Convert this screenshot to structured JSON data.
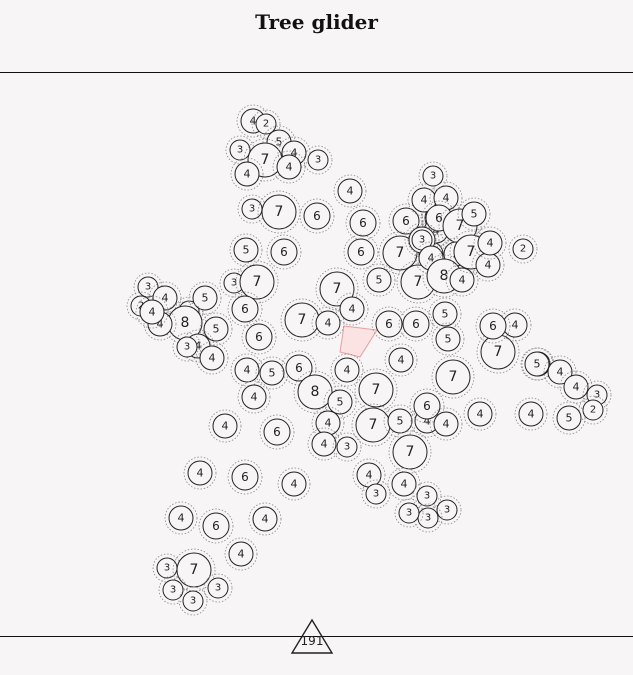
{
  "title": "Tree glider",
  "page_number": "191",
  "colors": {
    "background": "#f7f5f6",
    "stroke": "#222222",
    "halo": "#888888",
    "center_fill": "#fbe3e3",
    "center_stroke": "#e8a0a0"
  },
  "nodes": [
    {
      "v": "4"
    },
    {
      "v": "2"
    },
    {
      "v": "5"
    },
    {
      "v": "3"
    },
    {
      "v": "7"
    },
    {
      "v": "4"
    },
    {
      "v": "4"
    },
    {
      "v": "3"
    },
    {
      "v": "4"
    },
    {
      "v": "4"
    },
    {
      "v": "3"
    },
    {
      "v": "7"
    },
    {
      "v": "6"
    },
    {
      "v": "5"
    },
    {
      "v": "6"
    },
    {
      "v": "3"
    },
    {
      "v": "7"
    },
    {
      "v": "6"
    },
    {
      "v": "3"
    },
    {
      "v": "2"
    },
    {
      "v": "4"
    },
    {
      "v": "2"
    },
    {
      "v": "5"
    },
    {
      "v": "8"
    },
    {
      "v": "5"
    },
    {
      "v": "4"
    },
    {
      "v": "4"
    },
    {
      "v": "3"
    },
    {
      "v": "4"
    },
    {
      "v": "4"
    },
    {
      "v": "6"
    },
    {
      "v": "7"
    },
    {
      "v": "7"
    },
    {
      "v": "4"
    },
    {
      "v": "4"
    },
    {
      "v": "6"
    },
    {
      "v": "6"
    },
    {
      "v": "5"
    },
    {
      "v": "5"
    },
    {
      "v": "4"
    },
    {
      "v": "4"
    },
    {
      "v": "5"
    },
    {
      "v": "6"
    },
    {
      "v": "8"
    },
    {
      "v": "5"
    },
    {
      "v": "4"
    },
    {
      "v": "6"
    },
    {
      "v": "6"
    },
    {
      "v": "6"
    },
    {
      "v": "7"
    },
    {
      "v": "7"
    },
    {
      "v": "6"
    },
    {
      "v": "5"
    },
    {
      "v": "5"
    },
    {
      "v": "4"
    },
    {
      "v": "4"
    },
    {
      "v": "3"
    },
    {
      "v": "4"
    },
    {
      "v": "6"
    },
    {
      "v": "6"
    },
    {
      "v": "7"
    },
    {
      "v": "3"
    },
    {
      "v": "4"
    },
    {
      "v": "5"
    },
    {
      "v": "8"
    },
    {
      "v": "4"
    },
    {
      "v": "7"
    },
    {
      "v": "5"
    },
    {
      "v": "4"
    },
    {
      "v": "4"
    },
    {
      "v": "7"
    },
    {
      "v": "4"
    },
    {
      "v": "2"
    },
    {
      "v": "7"
    },
    {
      "v": "7"
    },
    {
      "v": "5"
    },
    {
      "v": "4"
    },
    {
      "v": "6"
    },
    {
      "v": "4"
    },
    {
      "v": "4"
    },
    {
      "v": "4"
    },
    {
      "v": "6"
    },
    {
      "v": "4"
    },
    {
      "v": "7"
    },
    {
      "v": "5"
    },
    {
      "v": "5"
    },
    {
      "v": "4"
    },
    {
      "v": "4"
    },
    {
      "v": "3"
    },
    {
      "v": "2"
    },
    {
      "v": "4"
    },
    {
      "v": "5"
    },
    {
      "v": "4"
    },
    {
      "v": "6"
    },
    {
      "v": "4"
    },
    {
      "v": "4"
    },
    {
      "v": "3"
    },
    {
      "v": "7"
    },
    {
      "v": "4"
    },
    {
      "v": "3"
    },
    {
      "v": "3"
    },
    {
      "v": "3"
    },
    {
      "v": "3"
    },
    {
      "v": "3"
    },
    {
      "v": "4"
    },
    {
      "v": "6"
    },
    {
      "v": "4"
    },
    {
      "v": "4"
    },
    {
      "v": "6"
    },
    {
      "v": "4"
    },
    {
      "v": "4"
    },
    {
      "v": "3"
    },
    {
      "v": "7"
    },
    {
      "v": "3"
    },
    {
      "v": "3"
    },
    {
      "v": "3"
    }
  ]
}
